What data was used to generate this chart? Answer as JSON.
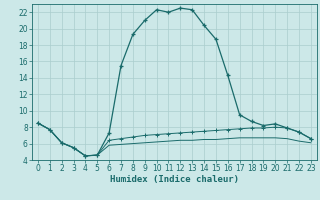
{
  "xlabel": "Humidex (Indice chaleur)",
  "bg_color": "#cce8e8",
  "line_color": "#1a6b6b",
  "xlim": [
    -0.5,
    23.5
  ],
  "ylim": [
    4,
    23
  ],
  "yticks": [
    4,
    6,
    8,
    10,
    12,
    14,
    16,
    18,
    20,
    22
  ],
  "xticks": [
    0,
    1,
    2,
    3,
    4,
    5,
    6,
    7,
    8,
    9,
    10,
    11,
    12,
    13,
    14,
    15,
    16,
    17,
    18,
    19,
    20,
    21,
    22,
    23
  ],
  "main_x": [
    0,
    1,
    2,
    3,
    4,
    5,
    6,
    7,
    8,
    9,
    10,
    11,
    12,
    13,
    14,
    15,
    16,
    17,
    18,
    19,
    20,
    21,
    22,
    23
  ],
  "main_y": [
    8.5,
    7.7,
    6.1,
    5.5,
    4.5,
    4.6,
    7.3,
    15.5,
    19.3,
    21.0,
    22.3,
    22.0,
    22.5,
    22.3,
    20.4,
    18.7,
    14.3,
    9.5,
    8.7,
    8.2,
    8.4,
    7.9,
    7.4,
    6.6
  ],
  "lower1_x": [
    0,
    1,
    2,
    3,
    4,
    5,
    6,
    7,
    8,
    9,
    10,
    11,
    12,
    13,
    14,
    15,
    16,
    17,
    18,
    19,
    20,
    21,
    22,
    23
  ],
  "lower1_y": [
    8.5,
    7.7,
    6.1,
    5.5,
    4.5,
    4.6,
    6.4,
    6.6,
    6.8,
    7.0,
    7.1,
    7.2,
    7.3,
    7.4,
    7.5,
    7.6,
    7.7,
    7.8,
    7.9,
    7.9,
    8.0,
    7.9,
    7.4,
    6.6
  ],
  "lower2_x": [
    0,
    1,
    2,
    3,
    4,
    5,
    6,
    7,
    8,
    9,
    10,
    11,
    12,
    13,
    14,
    15,
    16,
    17,
    18,
    19,
    20,
    21,
    22,
    23
  ],
  "lower2_y": [
    8.5,
    7.7,
    6.1,
    5.5,
    4.5,
    4.6,
    5.8,
    5.9,
    6.0,
    6.1,
    6.2,
    6.3,
    6.4,
    6.4,
    6.5,
    6.5,
    6.6,
    6.7,
    6.7,
    6.7,
    6.7,
    6.6,
    6.3,
    6.1
  ],
  "grid_color": "#aacece",
  "tick_fontsize": 5.5,
  "xlabel_fontsize": 6.5
}
